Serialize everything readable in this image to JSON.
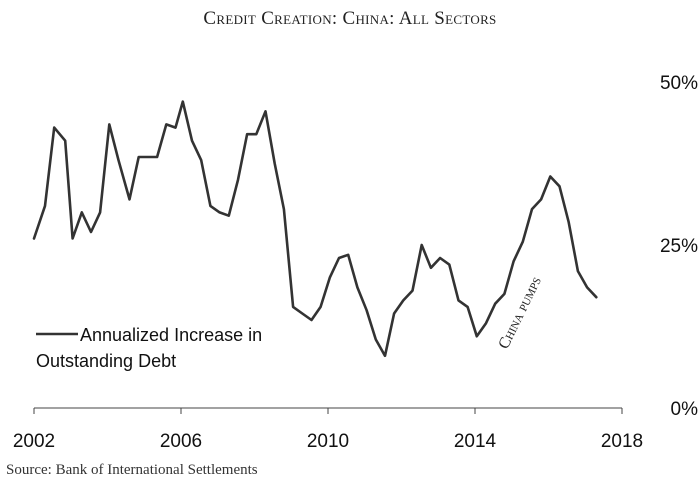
{
  "chart_data": {
    "type": "line",
    "title": "Credit Creation: China: All Sectors",
    "source": "Source: Bank of International Settlements",
    "xlim": [
      2002,
      2018
    ],
    "ylim": [
      0,
      50
    ],
    "x_ticks": [
      "2002",
      "2006",
      "2010",
      "2014",
      "2018"
    ],
    "y_ticks": [
      "0%",
      "25%",
      "50%"
    ],
    "y_axis_position": "right",
    "grid": false,
    "legend": {
      "placement": "bottom-left",
      "label_lines": [
        "Annualized Increase in",
        "Outstanding Debt"
      ]
    },
    "annotation": "China pumps",
    "series": [
      {
        "name": "Annualized Increase in Outstanding Debt",
        "color": "#333333",
        "x": [
          2002.0,
          2002.3,
          2002.55,
          2002.85,
          2003.05,
          2003.3,
          2003.55,
          2003.8,
          2004.05,
          2004.3,
          2004.6,
          2004.85,
          2005.1,
          2005.35,
          2005.6,
          2005.85,
          2006.05,
          2006.3,
          2006.55,
          2006.8,
          2007.05,
          2007.3,
          2007.55,
          2007.8,
          2008.05,
          2008.3,
          2008.55,
          2008.8,
          2009.05,
          2009.3,
          2009.55,
          2009.8,
          2010.05,
          2010.3,
          2010.55,
          2010.8,
          2011.05,
          2011.3,
          2011.55,
          2011.8,
          2012.05,
          2012.3,
          2012.55,
          2012.8,
          2013.05,
          2013.3,
          2013.55,
          2013.8,
          2014.05,
          2014.3,
          2014.55,
          2014.8,
          2015.05,
          2015.3,
          2015.55,
          2015.8,
          2016.05,
          2016.3,
          2016.55,
          2016.8,
          2017.05,
          2017.3
        ],
        "values": [
          26,
          31,
          43,
          41,
          26,
          30,
          27,
          30,
          43.5,
          38,
          32,
          38.5,
          38.5,
          38.5,
          43.5,
          43,
          47,
          41,
          38,
          31,
          30,
          29.5,
          35,
          42,
          42,
          45.5,
          37.5,
          30.5,
          15.5,
          14.5,
          13.5,
          15.5,
          20,
          23,
          23.5,
          18.5,
          15,
          10.5,
          8,
          14.5,
          16.5,
          18,
          25,
          21.5,
          23,
          22,
          16.5,
          15.5,
          11,
          13,
          16,
          17.5,
          22.5,
          25.5,
          30.5,
          32,
          35.5,
          34,
          28.5,
          21,
          18.5,
          17
        ]
      }
    ]
  }
}
